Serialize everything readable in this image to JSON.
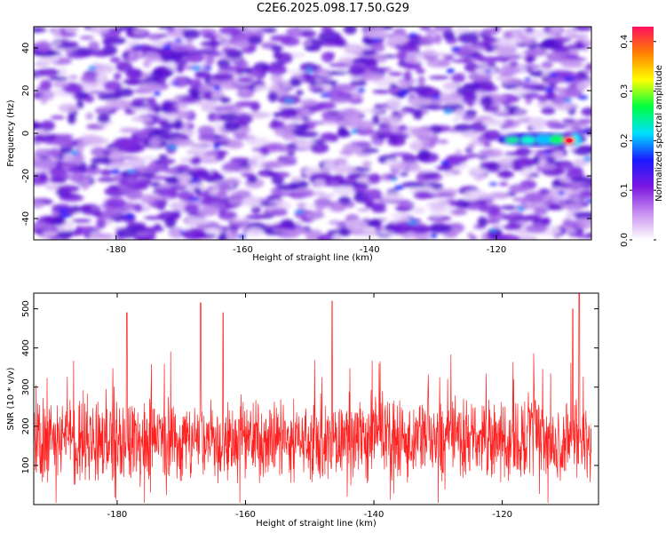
{
  "title": "C2E6.2025.098.17.50.G29",
  "chart_data": [
    {
      "type": "heatmap",
      "xlabel": "Height of straight line (km)",
      "ylabel": "Frequency (Hz)",
      "xlim": [
        -193,
        -105
      ],
      "ylim": [
        -50,
        50
      ],
      "xticks": [
        -180,
        -160,
        -140,
        -120
      ],
      "yticks": [
        -40,
        -20,
        0,
        20,
        40
      ],
      "colorbar": {
        "label": "Normalized spectral amplitude",
        "range": [
          0,
          0.43
        ],
        "ticks": [
          0.0,
          0.1,
          0.2,
          0.3,
          0.4
        ],
        "colors": [
          "#ffffff",
          "#c890f0",
          "#7b16e0",
          "#1a1aff",
          "#00e0ff",
          "#00ff40",
          "#ffff00",
          "#ff8000",
          "#ff1060"
        ]
      },
      "features": [
        {
          "x_range": [
            -119,
            -107
          ],
          "y": -3,
          "peak_x": -108.5,
          "peak_value": 0.43
        }
      ]
    },
    {
      "type": "line",
      "xlabel": "Height of straight line (km)",
      "ylabel": "SNR (10 * v/v)",
      "xlim": [
        -193,
        -105
      ],
      "ylim": [
        0,
        540
      ],
      "xticks": [
        -180,
        -160,
        -140,
        -120
      ],
      "yticks": [
        100,
        200,
        300,
        400,
        500
      ],
      "series": [
        {
          "color": "#ff2020",
          "mean": 165,
          "typical_range": [
            40,
            330
          ],
          "peaks": [
            [
              -167,
              515
            ],
            [
              -146.5,
              520
            ],
            [
              -178.5,
              490
            ],
            [
              -108,
              540
            ],
            [
              -163.5,
              490
            ],
            [
              -109,
              500
            ]
          ]
        }
      ]
    }
  ]
}
